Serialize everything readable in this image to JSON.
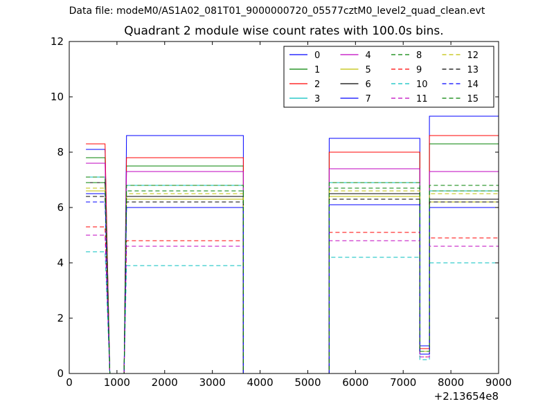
{
  "supertitle": "Data file: modeM0/AS1A02_081T01_9000000720_05577cztM0_level2_quad_clean.evt",
  "chart_data": {
    "type": "line",
    "title": "Quadrant 2 module wise count rates with 100.0s bins.",
    "xlabel": "",
    "ylabel": "",
    "x_offset_label": "+2.13654e8",
    "xlim": [
      0,
      9000
    ],
    "ylim": [
      0,
      12
    ],
    "xticks": [
      0,
      1000,
      2000,
      3000,
      4000,
      5000,
      6000,
      7000,
      8000,
      9000
    ],
    "yticks": [
      0,
      2,
      4,
      6,
      8,
      10,
      12
    ],
    "grid": false,
    "legend_placement": "top-right, 4 columns",
    "time_segments": [
      {
        "start": 350,
        "end": 750
      },
      {
        "start": 850,
        "end": 1150
      },
      {
        "start": 1200,
        "end": 3650
      },
      {
        "start": 3650,
        "end": 5450
      },
      {
        "start": 5450,
        "end": 7350
      },
      {
        "start": 7350,
        "end": 7550
      },
      {
        "start": 7550,
        "end": 9000
      }
    ],
    "series": [
      {
        "name": "0",
        "color": "#0000ff",
        "dash": "solid",
        "levels": [
          8.1,
          0.0,
          8.6,
          0.0,
          8.5,
          1.0,
          9.3
        ]
      },
      {
        "name": "1",
        "color": "#008000",
        "dash": "solid",
        "levels": [
          7.8,
          0.0,
          7.5,
          0.0,
          8.0,
          0.9,
          8.3
        ]
      },
      {
        "name": "2",
        "color": "#ff0000",
        "dash": "solid",
        "levels": [
          8.3,
          0.0,
          7.8,
          0.0,
          8.0,
          0.9,
          8.6
        ]
      },
      {
        "name": "3",
        "color": "#00bfbf",
        "dash": "solid",
        "levels": [
          7.1,
          0.0,
          6.8,
          0.0,
          6.9,
          0.8,
          6.6
        ]
      },
      {
        "name": "4",
        "color": "#bf00bf",
        "dash": "solid",
        "levels": [
          7.6,
          0.0,
          7.3,
          0.0,
          7.4,
          0.8,
          7.3
        ]
      },
      {
        "name": "5",
        "color": "#bfbf00",
        "dash": "solid",
        "levels": [
          6.6,
          0.0,
          6.3,
          0.0,
          6.4,
          0.8,
          6.2
        ]
      },
      {
        "name": "6",
        "color": "#000000",
        "dash": "solid",
        "levels": [
          6.9,
          0.0,
          6.4,
          0.0,
          6.5,
          0.8,
          6.3
        ]
      },
      {
        "name": "7",
        "color": "#0000ff",
        "dash": "solid",
        "levels": [
          6.5,
          0.0,
          6.0,
          0.0,
          6.1,
          0.7,
          6.0
        ]
      },
      {
        "name": "8",
        "color": "#008000",
        "dash": "dashed",
        "levels": [
          7.1,
          0.0,
          6.8,
          0.0,
          6.9,
          0.8,
          6.8
        ]
      },
      {
        "name": "9",
        "color": "#ff0000",
        "dash": "dashed",
        "levels": [
          5.3,
          0.0,
          4.8,
          0.0,
          5.1,
          0.6,
          4.9
        ]
      },
      {
        "name": "10",
        "color": "#00bfbf",
        "dash": "dashed",
        "levels": [
          4.4,
          0.0,
          3.9,
          0.0,
          4.2,
          0.5,
          4.0
        ]
      },
      {
        "name": "11",
        "color": "#bf00bf",
        "dash": "dashed",
        "levels": [
          5.0,
          0.0,
          4.6,
          0.0,
          4.8,
          0.6,
          4.6
        ]
      },
      {
        "name": "12",
        "color": "#bfbf00",
        "dash": "dashed",
        "levels": [
          6.7,
          0.0,
          6.5,
          0.0,
          6.6,
          0.8,
          6.5
        ]
      },
      {
        "name": "13",
        "color": "#000000",
        "dash": "dashed",
        "levels": [
          6.4,
          0.0,
          6.2,
          0.0,
          6.3,
          0.7,
          6.2
        ]
      },
      {
        "name": "14",
        "color": "#0000ff",
        "dash": "dashed",
        "levels": [
          6.2,
          0.0,
          6.0,
          0.0,
          6.1,
          0.7,
          6.0
        ]
      },
      {
        "name": "15",
        "color": "#008000",
        "dash": "dashed",
        "levels": [
          6.9,
          0.0,
          6.6,
          0.0,
          6.7,
          0.8,
          6.6
        ]
      }
    ]
  }
}
